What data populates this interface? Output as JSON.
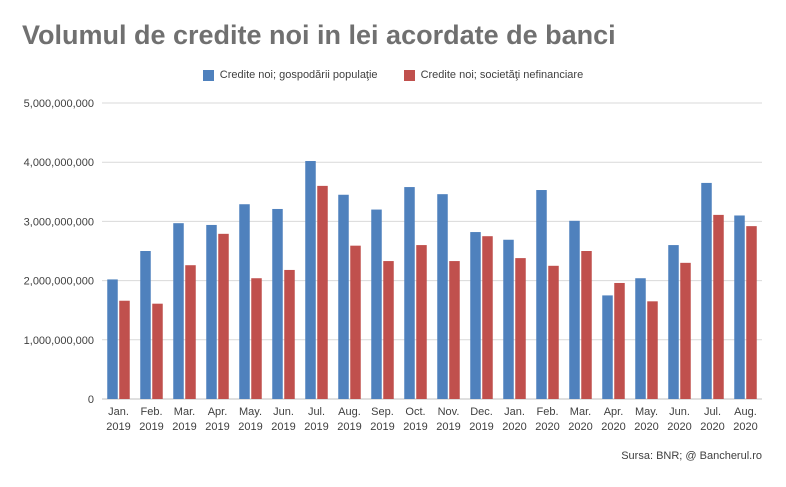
{
  "title": "Volumul de credite noi in lei acordate de banci",
  "source": "Sursa: BNR; @ Bancherul.ro",
  "chart_data": {
    "type": "bar",
    "title": "Volumul de credite noi in lei acordate de banci",
    "categories": [
      [
        "Jan.",
        "2019"
      ],
      [
        "Feb.",
        "2019"
      ],
      [
        "Mar.",
        "2019"
      ],
      [
        "Apr.",
        "2019"
      ],
      [
        "May.",
        "2019"
      ],
      [
        "Jun.",
        "2019"
      ],
      [
        "Jul.",
        "2019"
      ],
      [
        "Aug.",
        "2019"
      ],
      [
        "Sep.",
        "2019"
      ],
      [
        "Oct.",
        "2019"
      ],
      [
        "Nov.",
        "2019"
      ],
      [
        "Dec.",
        "2019"
      ],
      [
        "Jan.",
        "2020"
      ],
      [
        "Feb.",
        "2020"
      ],
      [
        "Mar.",
        "2020"
      ],
      [
        "Apr.",
        "2020"
      ],
      [
        "May.",
        "2020"
      ],
      [
        "Jun.",
        "2020"
      ],
      [
        "Jul.",
        "2020"
      ],
      [
        "Aug.",
        "2020"
      ]
    ],
    "series": [
      {
        "name": "Credite noi; gospodării populaţie",
        "color": "#4f81bd",
        "values": [
          2020000000,
          2500000000,
          2970000000,
          2940000000,
          3290000000,
          3210000000,
          4020000000,
          3450000000,
          3200000000,
          3580000000,
          3460000000,
          2820000000,
          2690000000,
          3530000000,
          3010000000,
          1750000000,
          2040000000,
          2600000000,
          3650000000,
          3100000000
        ]
      },
      {
        "name": "Credite noi; societăţi nefinanciare",
        "color": "#c0504d",
        "values": [
          1660000000,
          1610000000,
          2260000000,
          2790000000,
          2040000000,
          2180000000,
          3600000000,
          2590000000,
          2330000000,
          2600000000,
          2330000000,
          2750000000,
          2380000000,
          2250000000,
          2500000000,
          1960000000,
          1650000000,
          2300000000,
          3110000000,
          2920000000
        ]
      }
    ],
    "ylim": [
      0,
      5000000000
    ],
    "yticks": [
      "0",
      "1,000,000,000",
      "2,000,000,000",
      "3,000,000,000",
      "4,000,000,000",
      "5,000,000,000"
    ],
    "grid": true,
    "legend_position": "top"
  }
}
